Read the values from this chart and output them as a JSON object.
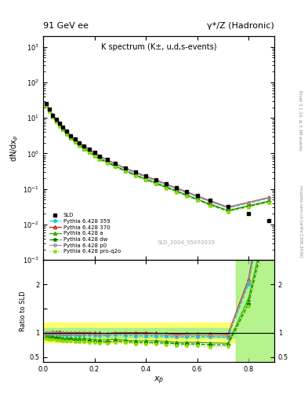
{
  "title_left": "91 GeV ee",
  "title_right": "γ*/Z (Hadronic)",
  "plot_title": "K spectrum (K±, u,d,s-events)",
  "ylabel_main": "dN/dx$_p$",
  "ylabel_ratio": "Ratio to SLD",
  "xlabel": "$x_p$",
  "right_label_top": "Rivet 3.1.10, ≥ 3.3M events",
  "right_label_bot": "mcplots.cern.ch [arXiv:1306.3436]",
  "watermark": "SLD_2004_S5693039",
  "xp": [
    0.012,
    0.025,
    0.038,
    0.051,
    0.064,
    0.077,
    0.092,
    0.108,
    0.124,
    0.14,
    0.16,
    0.18,
    0.2,
    0.22,
    0.25,
    0.28,
    0.32,
    0.36,
    0.4,
    0.44,
    0.48,
    0.52,
    0.56,
    0.6,
    0.65,
    0.72,
    0.8,
    0.88
  ],
  "sld": [
    25.0,
    18.0,
    12.0,
    9.0,
    7.0,
    5.5,
    4.2,
    3.2,
    2.5,
    2.0,
    1.6,
    1.3,
    1.05,
    0.85,
    0.68,
    0.52,
    0.39,
    0.3,
    0.23,
    0.18,
    0.14,
    0.11,
    0.085,
    0.065,
    0.048,
    0.032,
    0.02,
    0.013
  ],
  "py359": [
    24.5,
    17.5,
    11.8,
    8.8,
    6.8,
    5.3,
    4.0,
    3.1,
    2.4,
    1.9,
    1.55,
    1.25,
    1.0,
    0.8,
    0.64,
    0.5,
    0.37,
    0.28,
    0.215,
    0.168,
    0.13,
    0.1,
    0.078,
    0.06,
    0.044,
    0.029,
    0.04,
    0.055
  ],
  "py370": [
    25.0,
    18.0,
    12.1,
    9.1,
    7.1,
    5.5,
    4.2,
    3.2,
    2.5,
    2.0,
    1.6,
    1.3,
    1.04,
    0.84,
    0.67,
    0.52,
    0.39,
    0.3,
    0.23,
    0.178,
    0.138,
    0.106,
    0.083,
    0.064,
    0.047,
    0.031,
    0.042,
    0.058
  ],
  "pya": [
    23.0,
    16.5,
    11.0,
    8.2,
    6.3,
    4.9,
    3.7,
    2.85,
    2.2,
    1.75,
    1.4,
    1.13,
    0.9,
    0.72,
    0.58,
    0.45,
    0.33,
    0.25,
    0.192,
    0.15,
    0.115,
    0.088,
    0.068,
    0.052,
    0.038,
    0.025,
    0.034,
    0.046
  ],
  "pydw": [
    22.5,
    16.0,
    10.7,
    7.9,
    6.1,
    4.7,
    3.6,
    2.75,
    2.1,
    1.68,
    1.34,
    1.08,
    0.86,
    0.69,
    0.55,
    0.43,
    0.32,
    0.24,
    0.183,
    0.143,
    0.11,
    0.085,
    0.065,
    0.05,
    0.036,
    0.024,
    0.032,
    0.044
  ],
  "pyp0": [
    24.8,
    17.8,
    11.9,
    8.9,
    6.9,
    5.4,
    4.1,
    3.15,
    2.45,
    1.95,
    1.57,
    1.27,
    1.02,
    0.82,
    0.65,
    0.51,
    0.38,
    0.29,
    0.222,
    0.173,
    0.134,
    0.103,
    0.08,
    0.062,
    0.045,
    0.03,
    0.041,
    0.056
  ],
  "pyq2o": [
    22.0,
    15.5,
    10.4,
    7.7,
    5.9,
    4.6,
    3.5,
    2.68,
    2.05,
    1.63,
    1.3,
    1.05,
    0.84,
    0.67,
    0.53,
    0.42,
    0.31,
    0.23,
    0.177,
    0.138,
    0.106,
    0.081,
    0.063,
    0.048,
    0.034,
    0.023,
    0.031,
    0.042
  ],
  "colors": {
    "sld": "#000000",
    "py359": "#00ccdd",
    "py370": "#cc2222",
    "pya": "#33aa00",
    "pydw": "#007700",
    "pyp0": "#999999",
    "pyq2o": "#88dd00"
  },
  "bg_color": "#ffffff",
  "ylim_main": [
    0.001,
    2000.0
  ],
  "ylim_ratio": [
    0.4,
    2.5
  ],
  "xlim": [
    0.0,
    0.9
  ]
}
